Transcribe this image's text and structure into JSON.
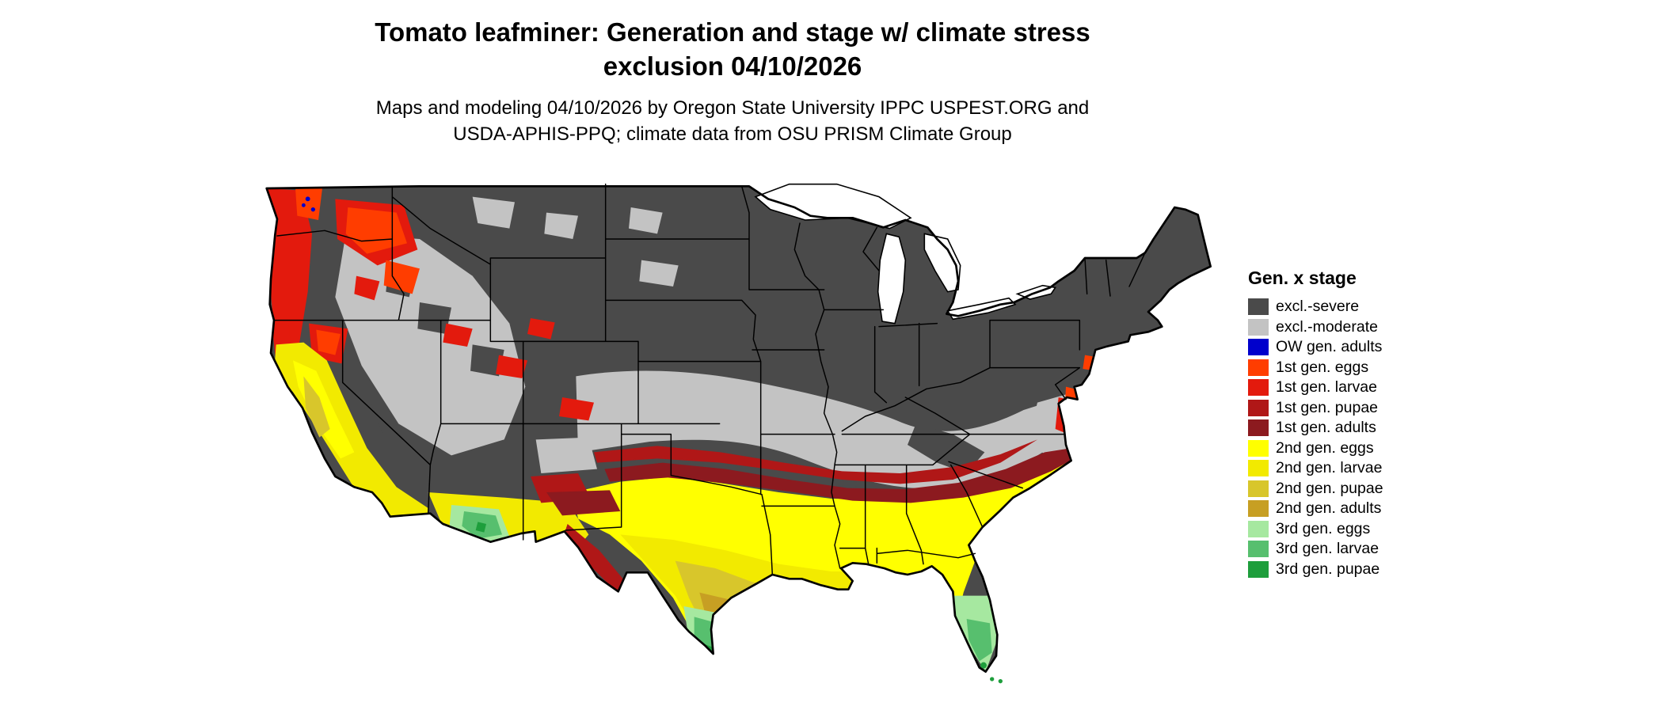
{
  "title": {
    "line1": "Tomato leafminer: Generation and stage w/ climate stress",
    "line2": "exclusion 04/10/2026"
  },
  "subtitle": {
    "line1": "Maps and modeling 04/10/2026 by Oregon State University IPPC USPEST.ORG and",
    "line2": "USDA-APHIS-PPQ; climate data from OSU PRISM Climate Group"
  },
  "map": {
    "type": "us-choropleth",
    "extent": "contiguous United States"
  },
  "legend": {
    "title": "Gen. x stage",
    "items": [
      {
        "key": "excl_severe",
        "label": "excl.-severe",
        "color": "#4a4a4a"
      },
      {
        "key": "excl_moderate",
        "label": "excl.-moderate",
        "color": "#c3c3c3"
      },
      {
        "key": "ow_adults",
        "label": "OW gen. adults",
        "color": "#0000cc"
      },
      {
        "key": "g1_eggs",
        "label": "1st gen. eggs",
        "color": "#ff3d00"
      },
      {
        "key": "g1_larvae",
        "label": "1st gen. larvae",
        "color": "#e31a0d"
      },
      {
        "key": "g1_pupae",
        "label": "1st gen. pupae",
        "color": "#b01717"
      },
      {
        "key": "g1_adults",
        "label": "1st gen. adults",
        "color": "#8c1a1f"
      },
      {
        "key": "g2_eggs",
        "label": "2nd gen. eggs",
        "color": "#ffff00"
      },
      {
        "key": "g2_larvae",
        "label": "2nd gen. larvae",
        "color": "#f2ea00"
      },
      {
        "key": "g2_pupae",
        "label": "2nd gen. pupae",
        "color": "#d8c62b"
      },
      {
        "key": "g2_adults",
        "label": "2nd gen. adults",
        "color": "#c79f23"
      },
      {
        "key": "g3_eggs",
        "label": "3rd gen. eggs",
        "color": "#a6e8a0"
      },
      {
        "key": "g3_larvae",
        "label": "3rd gen. larvae",
        "color": "#57bf6e"
      },
      {
        "key": "g3_pupae",
        "label": "3rd gen. pupae",
        "color": "#1e9e3c"
      }
    ]
  }
}
